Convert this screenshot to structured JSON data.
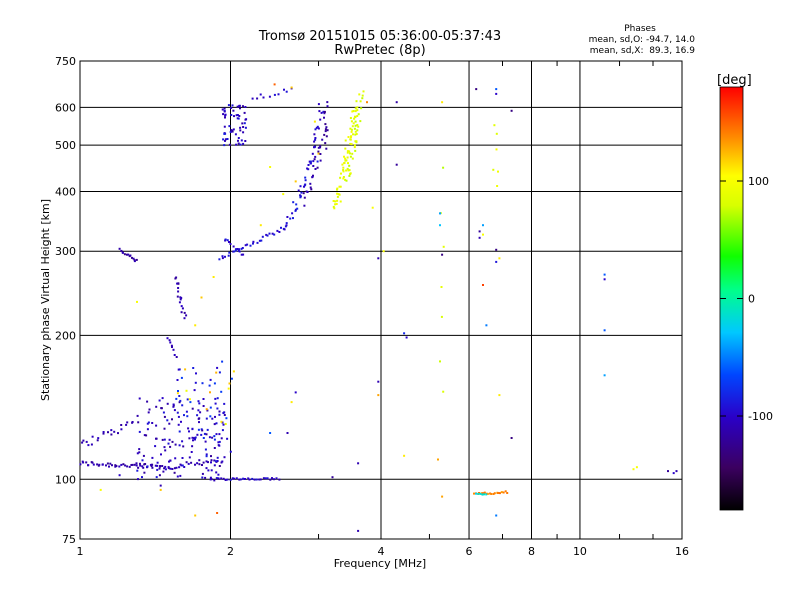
{
  "chart_data": {
    "type": "scatter",
    "title": "Tromsø 20151015 05:36:00-05:37:43",
    "subtitle": "RwPretec (8p)",
    "xlabel": "Frequency [MHz]",
    "ylabel": "Stationary phase Virtual Height [km]",
    "x_scale": "log",
    "y_scale": "log",
    "xlim": [
      1,
      16
    ],
    "ylim": [
      75,
      750
    ],
    "x_ticks": [
      1,
      2,
      4,
      6,
      8,
      10,
      16
    ],
    "x_tick_labels": [
      "1",
      "2",
      "4",
      "6",
      "8",
      "10",
      "16"
    ],
    "y_ticks": [
      75,
      100,
      200,
      300,
      400,
      500,
      600,
      750
    ],
    "y_tick_labels": [
      "75",
      "100",
      "200",
      "300",
      "400",
      "500",
      "600",
      "750"
    ],
    "grid": true,
    "stats": {
      "title": "Phases",
      "line1": "mean, sd,O: -94.7, 14.0",
      "line2": "mean, sd,X:  89.3, 16.9"
    },
    "colorbar": {
      "label": "[deg]",
      "range": [
        -180,
        180
      ],
      "ticks": [
        100,
        0,
        -100
      ],
      "tick_labels": [
        "100",
        "0",
        "-100"
      ]
    },
    "groups": [
      {
        "trace": "line",
        "x0": 1.0,
        "x1": 1.5,
        "y0": 108,
        "y1": 106,
        "phase": -112,
        "n": 50,
        "jitter": 0.012
      },
      {
        "trace": "line",
        "x0": 1.5,
        "x1": 1.95,
        "y0": 106,
        "y1": 110,
        "phase": -110,
        "n": 25,
        "jitter": 0.012
      },
      {
        "trace": "line",
        "x0": 1.0,
        "x1": 1.3,
        "y0": 118,
        "y1": 132,
        "phase": -110,
        "n": 22,
        "jitter": 0.02
      },
      {
        "trace": "cloud",
        "x0": 1.3,
        "x1": 1.95,
        "y0": 100,
        "y1": 150,
        "phase": -105,
        "n": 150,
        "spread": 18
      },
      {
        "trace": "cloud",
        "x0": 1.55,
        "x1": 2.05,
        "y0": 110,
        "y1": 180,
        "phase": -85,
        "n": 50,
        "spread": 18
      },
      {
        "trace": "cloud",
        "x0": 1.5,
        "x1": 2.05,
        "y0": 130,
        "y1": 170,
        "phase": 110,
        "n": 12,
        "spread": 20
      },
      {
        "trace": "line",
        "x0": 1.55,
        "x1": 1.62,
        "y0": 265,
        "y1": 218,
        "phase": -110,
        "n": 18,
        "jitter": 0.015
      },
      {
        "trace": "line",
        "x0": 1.5,
        "x1": 1.56,
        "y0": 198,
        "y1": 180,
        "phase": -110,
        "n": 8,
        "jitter": 0.01
      },
      {
        "trace": "line",
        "x0": 1.2,
        "x1": 1.3,
        "y0": 302,
        "y1": 286,
        "phase": -115,
        "n": 14,
        "jitter": 0.008
      },
      {
        "trace": "line",
        "x0": 1.82,
        "x1": 2.5,
        "y0": 100,
        "y1": 100,
        "phase": -100,
        "n": 32,
        "jitter": 0.006
      },
      {
        "trace": "line",
        "x0": 1.9,
        "x1": 2.6,
        "y0": 290,
        "y1": 338,
        "phase": -95,
        "n": 32,
        "jitter": 0.01
      },
      {
        "trace": "line",
        "x0": 1.95,
        "x1": 2.12,
        "y0": 318,
        "y1": 296,
        "phase": -95,
        "n": 12,
        "jitter": 0.01
      },
      {
        "trace": "line",
        "x0": 2.6,
        "x1": 2.95,
        "y0": 340,
        "y1": 470,
        "phase": -92,
        "n": 30,
        "jitter": 0.025
      },
      {
        "trace": "line",
        "x0": 2.8,
        "x1": 3.1,
        "y0": 380,
        "y1": 520,
        "phase": -115,
        "n": 25,
        "jitter": 0.03
      },
      {
        "trace": "line",
        "x0": 2.9,
        "x1": 3.05,
        "y0": 470,
        "y1": 600,
        "phase": -100,
        "n": 18,
        "jitter": 0.03
      },
      {
        "trace": "line",
        "x0": 3.1,
        "x1": 3.1,
        "y0": 500,
        "y1": 620,
        "phase": -120,
        "n": 12,
        "jitter": 0.02
      },
      {
        "trace": "cloud",
        "x0": 1.92,
        "x1": 2.15,
        "y0": 500,
        "y1": 610,
        "phase": -100,
        "n": 60,
        "spread": 16
      },
      {
        "trace": "line",
        "x0": 2.2,
        "x1": 2.65,
        "y0": 625,
        "y1": 660,
        "phase": -100,
        "n": 10,
        "jitter": 0.015
      },
      {
        "trace": "line",
        "x0": 3.25,
        "x1": 3.55,
        "y0": 365,
        "y1": 600,
        "phase": 90,
        "n": 60,
        "jitter": 0.03
      },
      {
        "trace": "line",
        "x0": 3.45,
        "x1": 3.65,
        "y0": 420,
        "y1": 650,
        "phase": 82,
        "n": 40,
        "jitter": 0.03
      },
      {
        "trace": "line",
        "x0": 6.15,
        "x1": 7.15,
        "y0": 93,
        "y1": 94,
        "phase": 140,
        "n": 20,
        "jitter": 0.005
      },
      {
        "trace": "line",
        "x0": 6.2,
        "x1": 6.5,
        "y0": 93,
        "y1": 93,
        "phase": -20,
        "n": 6,
        "jitter": 0.004
      },
      {
        "trace": "line",
        "x0": 6.8,
        "x1": 6.8,
        "y0": 400,
        "y1": 560,
        "phase": 90,
        "n": 6,
        "jitter": 0.03
      },
      {
        "trace": "line",
        "x0": 5.3,
        "x1": 5.3,
        "y0": 150,
        "y1": 440,
        "phase": 80,
        "n": 7,
        "jitter": 0.02
      }
    ],
    "points": [
      {
        "x": 2.45,
        "y": 670,
        "phase": 150
      },
      {
        "x": 2.65,
        "y": 660,
        "phase": 120
      },
      {
        "x": 3.75,
        "y": 615,
        "phase": 140
      },
      {
        "x": 4.3,
        "y": 615,
        "phase": -115
      },
      {
        "x": 5.3,
        "y": 615,
        "phase": 110
      },
      {
        "x": 4.3,
        "y": 455,
        "phase": -120
      },
      {
        "x": 3.85,
        "y": 370,
        "phase": 100
      },
      {
        "x": 3.95,
        "y": 290,
        "phase": -110
      },
      {
        "x": 4.05,
        "y": 300,
        "phase": 100
      },
      {
        "x": 5.25,
        "y": 360,
        "phase": -40
      },
      {
        "x": 5.25,
        "y": 340,
        "phase": -30
      },
      {
        "x": 5.3,
        "y": 295,
        "phase": -130
      },
      {
        "x": 4.45,
        "y": 202,
        "phase": -80
      },
      {
        "x": 4.5,
        "y": 198,
        "phase": -100
      },
      {
        "x": 3.95,
        "y": 160,
        "phase": -110
      },
      {
        "x": 3.95,
        "y": 150,
        "phase": 130
      },
      {
        "x": 4.45,
        "y": 112,
        "phase": 110
      },
      {
        "x": 5.2,
        "y": 110,
        "phase": 130
      },
      {
        "x": 3.6,
        "y": 108,
        "phase": -110
      },
      {
        "x": 3.6,
        "y": 78,
        "phase": -110
      },
      {
        "x": 3.2,
        "y": 101,
        "phase": -120
      },
      {
        "x": 5.3,
        "y": 92,
        "phase": 130
      },
      {
        "x": 2.65,
        "y": 145,
        "phase": 110
      },
      {
        "x": 2.7,
        "y": 152,
        "phase": -100
      },
      {
        "x": 2.6,
        "y": 125,
        "phase": -110
      },
      {
        "x": 2.4,
        "y": 125,
        "phase": -60
      },
      {
        "x": 6.2,
        "y": 655,
        "phase": -130
      },
      {
        "x": 6.8,
        "y": 655,
        "phase": -60
      },
      {
        "x": 6.8,
        "y": 640,
        "phase": -100
      },
      {
        "x": 7.3,
        "y": 590,
        "phase": -130
      },
      {
        "x": 6.3,
        "y": 330,
        "phase": -120
      },
      {
        "x": 6.3,
        "y": 320,
        "phase": -110
      },
      {
        "x": 6.4,
        "y": 340,
        "phase": -40
      },
      {
        "x": 6.4,
        "y": 325,
        "phase": 100
      },
      {
        "x": 6.8,
        "y": 302,
        "phase": -130
      },
      {
        "x": 6.8,
        "y": 285,
        "phase": -90
      },
      {
        "x": 6.4,
        "y": 255,
        "phase": 160
      },
      {
        "x": 6.5,
        "y": 210,
        "phase": -50
      },
      {
        "x": 6.9,
        "y": 290,
        "phase": 110
      },
      {
        "x": 7.3,
        "y": 122,
        "phase": -130
      },
      {
        "x": 6.9,
        "y": 150,
        "phase": 110
      },
      {
        "x": 6.8,
        "y": 84,
        "phase": -50
      },
      {
        "x": 11.2,
        "y": 268,
        "phase": -60
      },
      {
        "x": 11.2,
        "y": 262,
        "phase": -100
      },
      {
        "x": 11.2,
        "y": 205,
        "phase": -60
      },
      {
        "x": 11.2,
        "y": 165,
        "phase": -40
      },
      {
        "x": 12.8,
        "y": 105,
        "phase": 100
      },
      {
        "x": 13.0,
        "y": 106,
        "phase": 100
      },
      {
        "x": 15.0,
        "y": 104,
        "phase": -120
      },
      {
        "x": 15.4,
        "y": 103,
        "phase": -100
      },
      {
        "x": 15.6,
        "y": 104,
        "phase": -110
      },
      {
        "x": 1.1,
        "y": 95,
        "phase": 100
      },
      {
        "x": 1.45,
        "y": 95,
        "phase": 120
      },
      {
        "x": 1.7,
        "y": 84,
        "phase": 120
      },
      {
        "x": 1.88,
        "y": 85,
        "phase": 150
      },
      {
        "x": 1.2,
        "y": 102,
        "phase": -100
      },
      {
        "x": 1.45,
        "y": 97,
        "phase": -110
      },
      {
        "x": 1.3,
        "y": 235,
        "phase": 100
      },
      {
        "x": 1.75,
        "y": 240,
        "phase": 120
      },
      {
        "x": 1.7,
        "y": 210,
        "phase": 110
      },
      {
        "x": 1.85,
        "y": 265,
        "phase": 110
      },
      {
        "x": 2.4,
        "y": 450,
        "phase": 100
      },
      {
        "x": 2.55,
        "y": 395,
        "phase": 100
      },
      {
        "x": 2.3,
        "y": 340,
        "phase": 110
      },
      {
        "x": 2.7,
        "y": 420,
        "phase": 120
      },
      {
        "x": 2.95,
        "y": 560,
        "phase": 110
      },
      {
        "x": 3.0,
        "y": 480,
        "phase": 120
      }
    ]
  }
}
